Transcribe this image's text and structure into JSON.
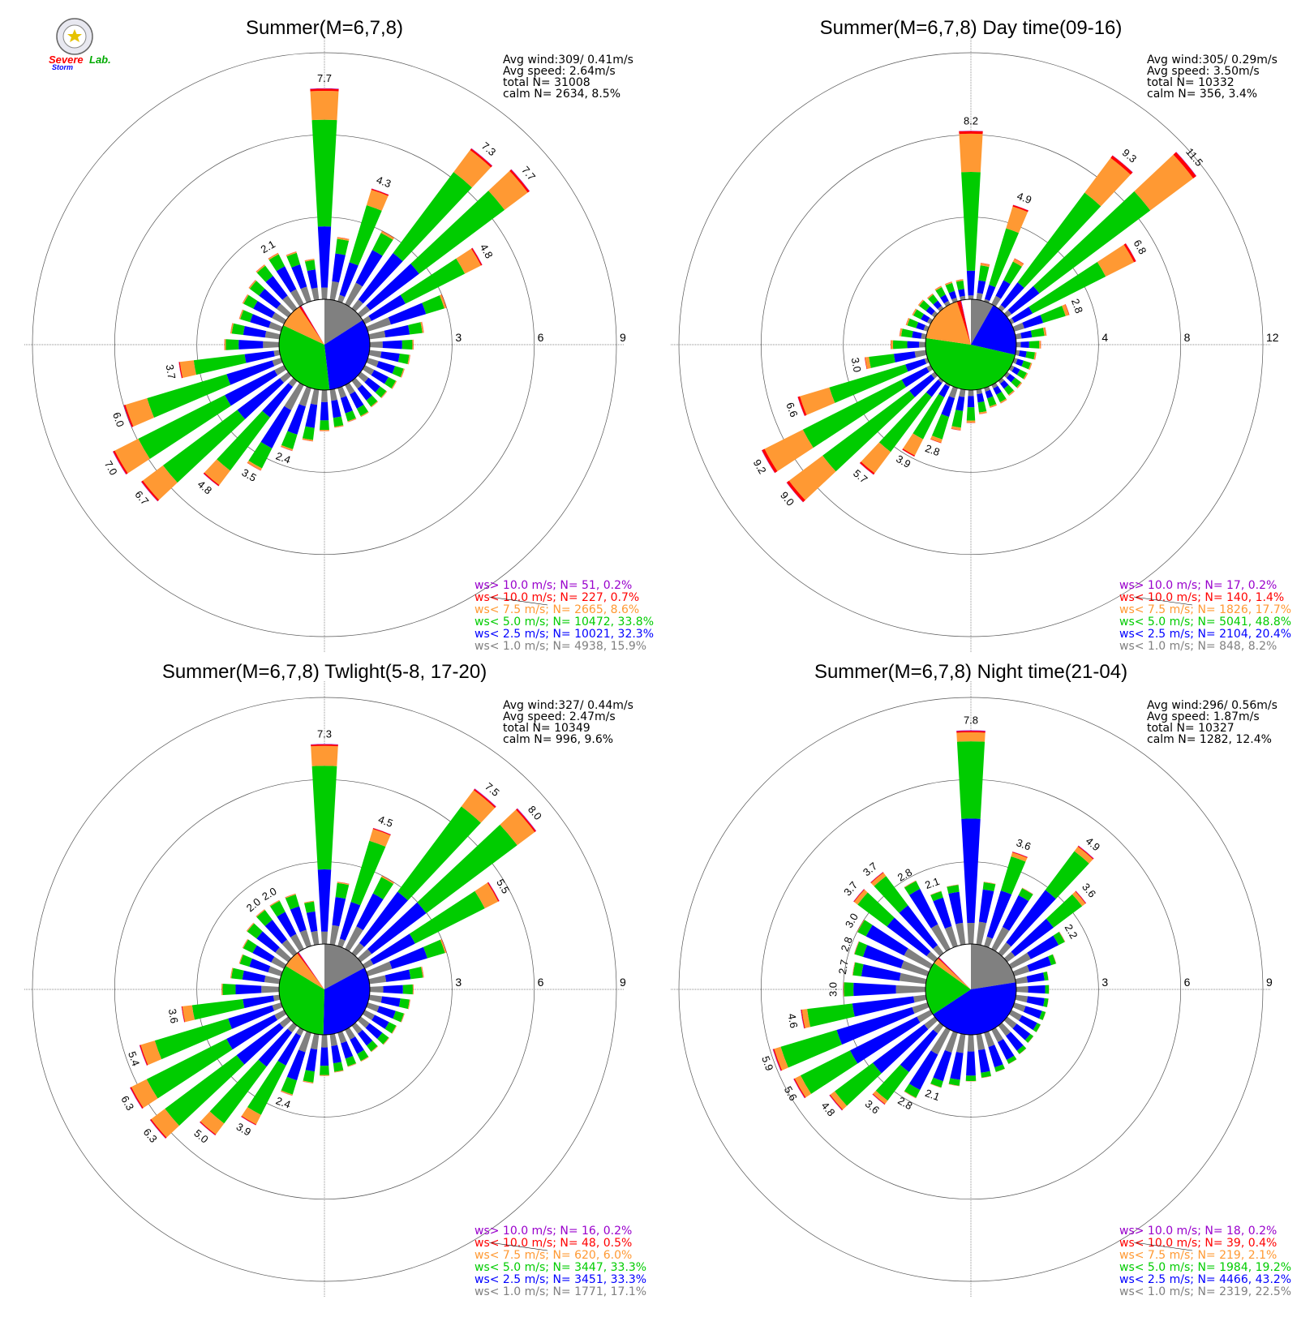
{
  "logo": {
    "text_severe": "Severe",
    "text_storm": "Storm",
    "text_lab": "Lab."
  },
  "colors": {
    "gt10": "#9900cc",
    "lt10": "#ff0000",
    "lt75": "#ff9933",
    "lt50": "#00cc00",
    "lt25": "#0000ff",
    "lt10ms": "#808080",
    "calm": "#ffffff",
    "grid": "#555555"
  },
  "chart_data": [
    {
      "type": "polar-bar",
      "title": "Summer(M=6,7,8)",
      "info": [
        "Avg wind:309/ 0.41m/s",
        "Avg speed: 2.64m/s",
        "total N=      31008",
        "calm N=   2634,   8.5%"
      ],
      "rlim": [
        0,
        9
      ],
      "rticks": [
        "3",
        "6",
        "9"
      ],
      "sectors_deg_step": 10,
      "totals": [
        7.7,
        2.3,
        4.3,
        3.0,
        7.3,
        7.7,
        4.8,
        3.0,
        2.0,
        1.6,
        1.5,
        1.4,
        1.3,
        1.2,
        1.2,
        1.3,
        1.3,
        1.4,
        1.5,
        1.9,
        2.4,
        3.5,
        4.8,
        6.7,
        7.0,
        6.0,
        3.7,
        2.0,
        1.8,
        1.6,
        1.7,
        1.8,
        2.0,
        2.1,
        1.9,
        1.5
      ],
      "bar_labels": [
        [
          0,
          "7.7"
        ],
        [
          2,
          "4.3"
        ],
        [
          4,
          "7.3"
        ],
        [
          5,
          "7.7"
        ],
        [
          6,
          "4.8"
        ],
        [
          20,
          "2.4"
        ],
        [
          21,
          "3.5"
        ],
        [
          22,
          "4.8"
        ],
        [
          23,
          "6.7"
        ],
        [
          24,
          "7.0"
        ],
        [
          25,
          "6.0"
        ],
        [
          26,
          "3.7"
        ],
        [
          33,
          "2.1"
        ]
      ],
      "pie": {
        "gray": 15.9,
        "blue": 32.3,
        "green": 33.8,
        "orange": 8.6,
        "red": 0.7,
        "purple": 0.2,
        "calm": 8.5
      },
      "legend": [
        {
          "text": "ws> 10.0 m/s; N=     51,   0.2%",
          "color": "gt10"
        },
        {
          "text": "ws< 10.0 m/s; N=   227,   0.7%",
          "color": "lt10"
        },
        {
          "text": "ws<  7.5 m/s; N=   2665,   8.6%",
          "color": "lt75"
        },
        {
          "text": "ws<  5.0 m/s; N= 10472, 33.8%",
          "color": "lt50"
        },
        {
          "text": "ws<  2.5 m/s; N= 10021, 32.3%",
          "color": "lt25"
        },
        {
          "text": "ws<  1.0 m/s; N=   4938, 15.9%",
          "color": "lt10ms"
        }
      ]
    },
    {
      "type": "polar-bar",
      "title": "Summer(M=6,7,8) Day time(09-16)",
      "info": [
        "Avg wind:305/ 0.29m/s",
        "Avg speed: 3.50m/s",
        "total N=      10332",
        "calm N=   356,   3.4%"
      ],
      "rlim": [
        0,
        12
      ],
      "rticks": [
        "4",
        "8",
        "12"
      ],
      "sectors_deg_step": 10,
      "totals": [
        8.2,
        1.8,
        4.9,
        2.5,
        9.3,
        11.5,
        6.8,
        2.8,
        1.5,
        1.2,
        1.0,
        0.9,
        0.9,
        0.9,
        0.9,
        1.0,
        1.0,
        1.2,
        1.6,
        2.0,
        2.8,
        3.9,
        5.7,
        9.0,
        9.2,
        6.6,
        3.0,
        1.7,
        1.3,
        1.1,
        1.0,
        1.0,
        0.9,
        1.0,
        1.0,
        1.0
      ],
      "bar_labels": [
        [
          0,
          "8.2"
        ],
        [
          2,
          "4.9"
        ],
        [
          4,
          "9.3"
        ],
        [
          5,
          "11.5"
        ],
        [
          6,
          "6.8"
        ],
        [
          7,
          "2.8"
        ],
        [
          20,
          "2.8"
        ],
        [
          21,
          "3.9"
        ],
        [
          22,
          "5.7"
        ],
        [
          23,
          "9.0"
        ],
        [
          24,
          "9.2"
        ],
        [
          25,
          "6.6"
        ],
        [
          26,
          "3.0"
        ]
      ],
      "pie": {
        "gray": 8.2,
        "blue": 20.4,
        "green": 48.8,
        "orange": 17.7,
        "red": 1.4,
        "purple": 0.2,
        "calm": 3.4
      },
      "legend": [
        {
          "text": "ws> 10.0 m/s; N=     17,   0.2%",
          "color": "gt10"
        },
        {
          "text": "ws< 10.0 m/s; N=   140,   1.4%",
          "color": "lt10"
        },
        {
          "text": "ws<  7.5 m/s; N=   1826, 17.7%",
          "color": "lt75"
        },
        {
          "text": "ws<  5.0 m/s; N=   5041, 48.8%",
          "color": "lt50"
        },
        {
          "text": "ws<  2.5 m/s; N=   2104, 20.4%",
          "color": "lt25"
        },
        {
          "text": "ws<  1.0 m/s; N=     848,   8.2%",
          "color": "lt10ms"
        }
      ]
    },
    {
      "type": "polar-bar",
      "title": "Summer(M=6,7,8) Twlight(5-8, 17-20)",
      "info": [
        "Avg wind:327/ 0.44m/s",
        "Avg speed: 2.47m/s",
        "total N=      10349",
        "calm N=     996,   9.6%"
      ],
      "rlim": [
        0,
        9
      ],
      "rticks": [
        "3",
        "6",
        "9"
      ],
      "sectors_deg_step": 10,
      "totals": [
        7.3,
        2.3,
        4.5,
        3.0,
        7.5,
        8.0,
        5.5,
        3.0,
        2.0,
        1.6,
        1.5,
        1.4,
        1.3,
        1.3,
        1.2,
        1.3,
        1.3,
        1.4,
        1.5,
        1.8,
        2.4,
        3.9,
        5.0,
        6.3,
        6.3,
        5.4,
        3.6,
        2.1,
        1.8,
        1.6,
        1.7,
        1.9,
        2.0,
        2.0,
        2.0,
        1.6
      ],
      "bar_labels": [
        [
          0,
          "7.3"
        ],
        [
          2,
          "4.5"
        ],
        [
          4,
          "7.5"
        ],
        [
          5,
          "8.0"
        ],
        [
          6,
          "5.5"
        ],
        [
          20,
          "2.4"
        ],
        [
          21,
          "3.9"
        ],
        [
          22,
          "5.0"
        ],
        [
          23,
          "6.3"
        ],
        [
          24,
          "6.3"
        ],
        [
          25,
          "5.4"
        ],
        [
          26,
          "3.6"
        ],
        [
          32,
          "2.0"
        ],
        [
          33,
          "2.0"
        ]
      ],
      "pie": {
        "gray": 17.1,
        "blue": 33.3,
        "green": 33.3,
        "orange": 6.0,
        "red": 0.5,
        "purple": 0.2,
        "calm": 9.6
      },
      "legend": [
        {
          "text": "ws> 10.0 m/s; N=     16,   0.2%",
          "color": "gt10"
        },
        {
          "text": "ws< 10.0 m/s; N=     48,   0.5%",
          "color": "lt10"
        },
        {
          "text": "ws<  7.5 m/s; N=     620,   6.0%",
          "color": "lt75"
        },
        {
          "text": "ws<  5.0 m/s; N=   3447, 33.3%",
          "color": "lt50"
        },
        {
          "text": "ws<  2.5 m/s; N=   3451, 33.3%",
          "color": "lt25"
        },
        {
          "text": "ws<  1.0 m/s; N=   1771, 17.1%",
          "color": "lt10ms"
        }
      ]
    },
    {
      "type": "polar-bar",
      "title": "Summer(M=6,7,8) Night time(21-04)",
      "info": [
        "Avg wind:296/ 0.56m/s",
        "Avg speed: 1.87m/s",
        "total N=      10327",
        "calm N=   1282,  12.4%"
      ],
      "rlim": [
        0,
        9
      ],
      "rticks": [
        "3",
        "6",
        "9"
      ],
      "sectors_deg_step": 10,
      "totals": [
        7.8,
        2.3,
        3.6,
        2.5,
        4.9,
        3.6,
        2.2,
        1.6,
        1.2,
        1.2,
        1.2,
        1.2,
        1.2,
        1.2,
        1.3,
        1.4,
        1.5,
        1.6,
        1.7,
        1.9,
        2.1,
        2.8,
        3.6,
        4.8,
        5.6,
        5.9,
        4.6,
        3.0,
        2.7,
        2.8,
        3.0,
        3.7,
        3.7,
        2.8,
        2.1,
        2.2
      ],
      "bar_labels": [
        [
          0,
          "7.8"
        ],
        [
          2,
          "3.6"
        ],
        [
          4,
          "4.9"
        ],
        [
          5,
          "3.6"
        ],
        [
          6,
          "2.2"
        ],
        [
          20,
          "2.1"
        ],
        [
          21,
          "2.8"
        ],
        [
          22,
          "3.6"
        ],
        [
          23,
          "4.8"
        ],
        [
          24,
          "5.6"
        ],
        [
          25,
          "5.9"
        ],
        [
          26,
          "4.6"
        ],
        [
          27,
          "3.0"
        ],
        [
          28,
          "2.7"
        ],
        [
          29,
          "2.8"
        ],
        [
          30,
          "3.0"
        ],
        [
          31,
          "3.7"
        ],
        [
          32,
          "3.7"
        ],
        [
          33,
          "2.8"
        ],
        [
          34,
          "2.1"
        ]
      ],
      "pie": {
        "gray": 22.5,
        "blue": 43.2,
        "green": 19.2,
        "orange": 2.1,
        "red": 0.4,
        "purple": 0.2,
        "calm": 12.4
      },
      "legend": [
        {
          "text": "ws> 10.0 m/s; N=     18,   0.2%",
          "color": "gt10"
        },
        {
          "text": "ws< 10.0 m/s; N=     39,   0.4%",
          "color": "lt10"
        },
        {
          "text": "ws<  7.5 m/s; N=     219,   2.1%",
          "color": "lt75"
        },
        {
          "text": "ws<  5.0 m/s; N=   1984, 19.2%",
          "color": "lt50"
        },
        {
          "text": "ws<  2.5 m/s; N=   4466, 43.2%",
          "color": "lt25"
        },
        {
          "text": "ws<  1.0 m/s; N=   2319, 22.5%",
          "color": "lt10ms"
        }
      ]
    }
  ]
}
